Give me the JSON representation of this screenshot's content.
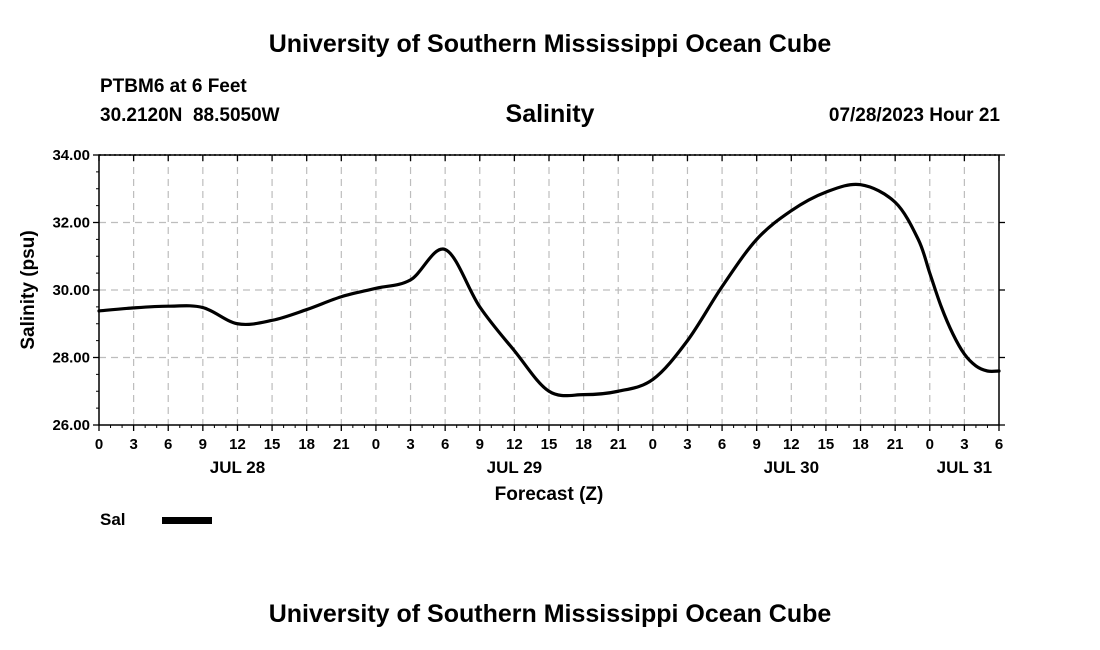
{
  "page": {
    "header_title": "University of Southern Mississippi Ocean Cube",
    "footer_title": "University of Southern Mississippi Ocean Cube",
    "station": "PTBM6 at 6 Feet",
    "coords": "30.2120N  88.5050W",
    "datetime": "07/28/2023 Hour 21"
  },
  "chart_data": {
    "type": "line",
    "title": "Salinity",
    "xlabel": "Forecast (Z)",
    "ylabel": "Salinity (psu)",
    "ylim": [
      26.0,
      34.0
    ],
    "yticks": [
      26.0,
      28.0,
      30.0,
      32.0,
      34.0
    ],
    "ytick_labels": [
      "26.00",
      "28.00",
      "30.00",
      "32.00",
      "34.00"
    ],
    "xlim": [
      0,
      78
    ],
    "xtick_hours": [
      0,
      3,
      6,
      9,
      12,
      15,
      18,
      21,
      24,
      27,
      30,
      33,
      36,
      39,
      42,
      45,
      48,
      51,
      54,
      57,
      60,
      63,
      66,
      69,
      72,
      75,
      78
    ],
    "xtick_labels": [
      "0",
      "3",
      "6",
      "9",
      "12",
      "15",
      "18",
      "21",
      "0",
      "3",
      "6",
      "9",
      "12",
      "15",
      "18",
      "21",
      "0",
      "3",
      "6",
      "9",
      "12",
      "15",
      "18",
      "21",
      "0",
      "3",
      "6"
    ],
    "day_labels": [
      {
        "hour": 12,
        "label": "JUL 28"
      },
      {
        "hour": 36,
        "label": "JUL 29"
      },
      {
        "hour": 60,
        "label": "JUL 30"
      },
      {
        "hour": 75,
        "label": "JUL 31"
      }
    ],
    "grid": true,
    "legend": {
      "label": "Sal",
      "position": "bottom-left"
    },
    "series": [
      {
        "name": "Sal",
        "color": "#000000",
        "x": [
          0,
          3,
          6,
          9,
          12,
          15,
          18,
          21,
          24,
          27,
          30,
          33,
          36,
          39,
          42,
          45,
          48,
          51,
          54,
          57,
          60,
          63,
          66,
          69,
          71,
          72,
          73,
          74,
          75,
          76,
          77,
          78
        ],
        "values": [
          29.38,
          29.47,
          29.52,
          29.48,
          29.0,
          29.1,
          29.42,
          29.8,
          30.05,
          30.3,
          31.2,
          29.5,
          28.2,
          27.0,
          26.9,
          27.0,
          27.35,
          28.5,
          30.1,
          31.5,
          32.35,
          32.9,
          33.12,
          32.6,
          31.5,
          30.5,
          29.5,
          28.7,
          28.1,
          27.75,
          27.6,
          27.6
        ]
      }
    ]
  }
}
